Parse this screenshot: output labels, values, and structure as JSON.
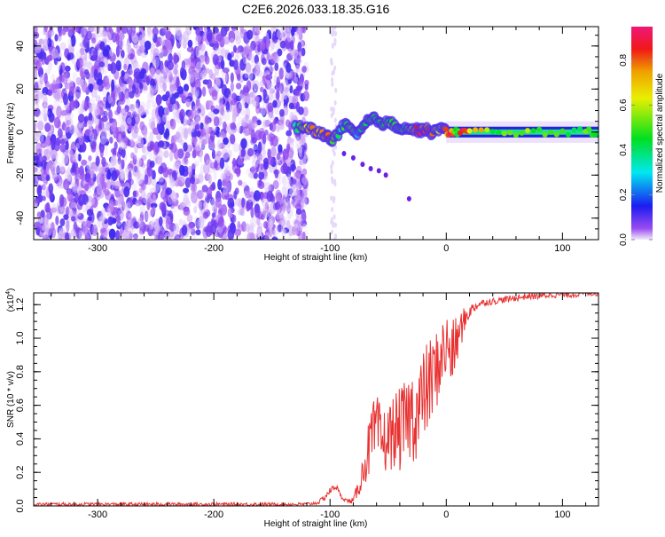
{
  "chart_data": [
    {
      "type": "heatmap",
      "title": "C2E6.2026.033.18.35.G16",
      "xlabel": "Height of straight line (km)",
      "ylabel": "Frequency (Hz)",
      "xlim": [
        -355,
        131
      ],
      "ylim": [
        -50,
        49
      ],
      "xticks": [
        -300,
        -200,
        -100,
        0,
        100
      ],
      "yticks": [
        -40,
        -20,
        0,
        20,
        40
      ],
      "noise_region_max_height_km": -120,
      "ridge": {
        "x": [
          -130,
          -122,
          -115,
          -108,
          -103,
          -98,
          -93,
          -88,
          -83,
          -78,
          -73,
          -68,
          -63,
          -58,
          -53,
          -48,
          -43,
          -38,
          -33,
          -28,
          -23,
          -18,
          -13,
          -8,
          -3,
          2,
          7,
          12,
          20,
          40,
          60,
          80,
          100,
          120,
          131
        ],
        "freq": [
          2,
          2,
          1,
          -1,
          -2,
          -3,
          -1,
          3,
          2,
          -2,
          1,
          5,
          6,
          5,
          4,
          4,
          3,
          2,
          2,
          1,
          1,
          1,
          0,
          1,
          1,
          0,
          0,
          0,
          0,
          0,
          0,
          0,
          0,
          0,
          0
        ],
        "amp": [
          0.45,
          0.7,
          0.8,
          0.75,
          0.85,
          0.6,
          0.4,
          0.5,
          0.55,
          0.35,
          0.45,
          0.5,
          0.45,
          0.5,
          0.5,
          0.55,
          0.5,
          0.45,
          0.6,
          0.8,
          0.9,
          0.85,
          0.75,
          0.6,
          0.88,
          0.85,
          0.5,
          0.85,
          0.7,
          0.55,
          0.55,
          0.5,
          0.5,
          0.5,
          0.5
        ]
      },
      "colorbar": {
        "label": "Normalized spectral amplitude",
        "range": [
          0,
          0.95
        ],
        "ticks": [
          "0.0",
          "0.2",
          "0.4",
          "0.6",
          "0.8"
        ],
        "stops": [
          {
            "v": 0.0,
            "c": "#f3ecfb"
          },
          {
            "v": 0.05,
            "c": "#9a4cf0"
          },
          {
            "v": 0.15,
            "c": "#1c1cf0"
          },
          {
            "v": 0.3,
            "c": "#00e8f0"
          },
          {
            "v": 0.45,
            "c": "#00e020"
          },
          {
            "v": 0.63,
            "c": "#e8f000"
          },
          {
            "v": 0.75,
            "c": "#f0a000"
          },
          {
            "v": 0.85,
            "c": "#f01818"
          },
          {
            "v": 0.95,
            "c": "#f0187a"
          }
        ]
      }
    },
    {
      "type": "line",
      "xlabel": "Height of straight line (km)",
      "ylabel": "SNR (10 * v/v)",
      "y_multiplier": "(x10",
      "y_multiplier_exp": "4",
      "y_multiplier_close": ")",
      "xlim": [
        -355,
        131
      ],
      "ylim": [
        0,
        1.27
      ],
      "xticks": [
        -300,
        -200,
        -100,
        0,
        100
      ],
      "yticks": [
        "0.0",
        "0.2",
        "0.4",
        "0.6",
        "0.8",
        "1.0",
        "1.2"
      ],
      "line_color": "#e83030",
      "x": [
        -355,
        -300,
        -250,
        -200,
        -150,
        -120,
        -110,
        -105,
        -100,
        -95,
        -90,
        -85,
        -80,
        -75,
        -70,
        -65,
        -60,
        -55,
        -50,
        -45,
        -40,
        -35,
        -30,
        -25,
        -20,
        -15,
        -10,
        -5,
        0,
        5,
        10,
        15,
        20,
        25,
        30,
        40,
        50,
        60,
        70,
        80,
        90,
        100,
        110,
        120,
        131
      ],
      "values": [
        0.01,
        0.01,
        0.01,
        0.01,
        0.01,
        0.01,
        0.02,
        0.05,
        0.09,
        0.12,
        0.05,
        0.03,
        0.03,
        0.12,
        0.25,
        0.38,
        0.45,
        0.38,
        0.4,
        0.45,
        0.45,
        0.5,
        0.55,
        0.55,
        0.65,
        0.72,
        0.78,
        0.88,
        0.95,
        0.9,
        1.0,
        1.1,
        1.16,
        1.19,
        1.21,
        1.22,
        1.23,
        1.24,
        1.25,
        1.25,
        1.26,
        1.26,
        1.26,
        1.27,
        1.27
      ],
      "noise": [
        0.01,
        0.01,
        0.01,
        0.01,
        0.01,
        0.01,
        0.01,
        0.02,
        0.02,
        0.02,
        0.01,
        0.01,
        0.02,
        0.06,
        0.12,
        0.2,
        0.22,
        0.2,
        0.2,
        0.22,
        0.25,
        0.25,
        0.28,
        0.3,
        0.28,
        0.28,
        0.25,
        0.22,
        0.22,
        0.2,
        0.15,
        0.08,
        0.04,
        0.03,
        0.02,
        0.02,
        0.02,
        0.02,
        0.02,
        0.02,
        0.02,
        0.02,
        0.02,
        0.02,
        0.02
      ]
    }
  ]
}
